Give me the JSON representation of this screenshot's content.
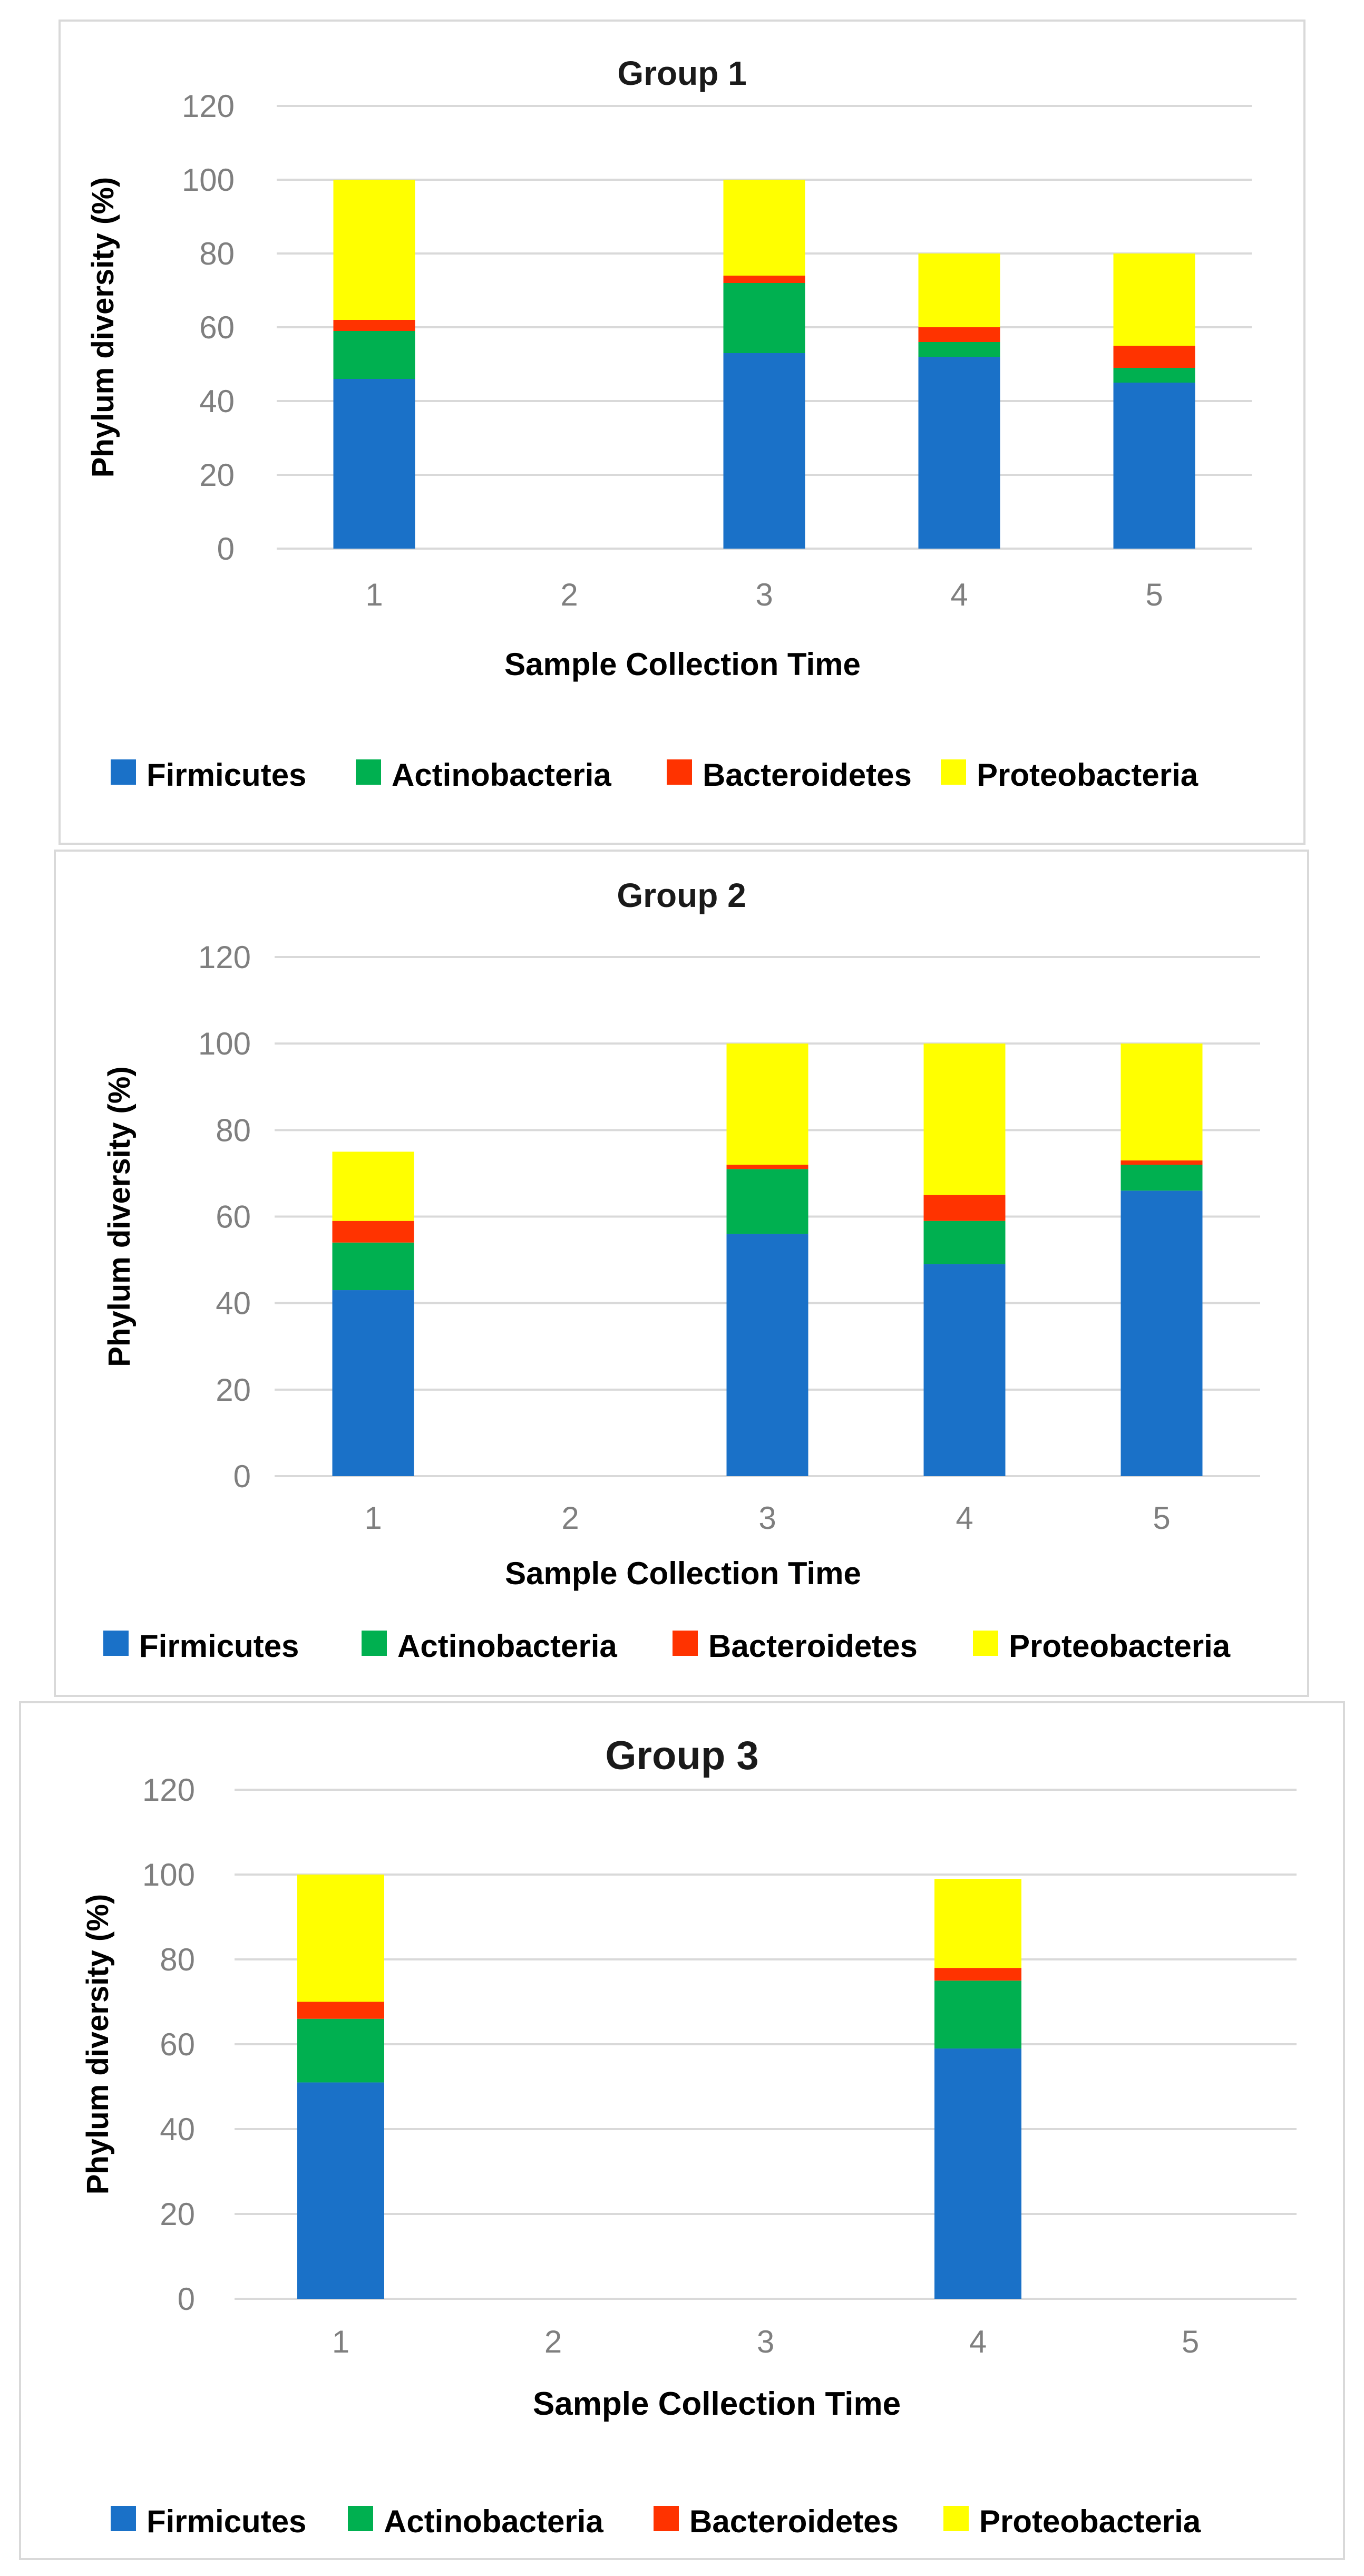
{
  "chart_data": [
    {
      "type": "bar",
      "stacked": true,
      "title": "Group 1",
      "xlabel": "Sample Collection Time",
      "ylabel": "Phylum diversity (%)",
      "categories": [
        "1",
        "2",
        "3",
        "4",
        "5"
      ],
      "ylim": [
        0,
        120
      ],
      "yticks": [
        "0",
        "20",
        "40",
        "60",
        "80",
        "100",
        "120"
      ],
      "grid": true,
      "legend_position": "bottom",
      "series": [
        {
          "name": "Firmicutes",
          "color": "#1a71c8",
          "values": [
            46,
            0,
            53,
            52,
            45
          ]
        },
        {
          "name": "Actinobacteria",
          "color": "#00b050",
          "values": [
            13,
            0,
            19,
            4,
            4
          ]
        },
        {
          "name": "Bacteroidetes",
          "color": "#ff3300",
          "values": [
            3,
            0,
            2,
            4,
            6
          ]
        },
        {
          "name": "Proteobacteria",
          "color": "#ffff00",
          "values": [
            38,
            0,
            26,
            20,
            25
          ]
        }
      ]
    },
    {
      "type": "bar",
      "stacked": true,
      "title": "Group 2",
      "xlabel": "Sample Collection Time",
      "ylabel": "Phylum diversity (%)",
      "categories": [
        "1",
        "2",
        "3",
        "4",
        "5"
      ],
      "ylim": [
        0,
        120
      ],
      "yticks": [
        "0",
        "20",
        "40",
        "60",
        "80",
        "100",
        "120"
      ],
      "grid": true,
      "legend_position": "bottom",
      "series": [
        {
          "name": "Firmicutes",
          "color": "#1a71c8",
          "values": [
            43,
            0,
            56,
            49,
            66
          ]
        },
        {
          "name": "Actinobacteria",
          "color": "#00b050",
          "values": [
            11,
            0,
            15,
            10,
            6
          ]
        },
        {
          "name": "Bacteroidetes",
          "color": "#ff3300",
          "values": [
            5,
            0,
            1,
            6,
            1
          ]
        },
        {
          "name": "Proteobacteria",
          "color": "#ffff00",
          "values": [
            16,
            0,
            28,
            35,
            27
          ]
        }
      ]
    },
    {
      "type": "bar",
      "stacked": true,
      "title": "Group 3",
      "xlabel": "Sample Collection Time",
      "ylabel": "Phylum diversity (%)",
      "categories": [
        "1",
        "2",
        "3",
        "4",
        "5"
      ],
      "ylim": [
        0,
        120
      ],
      "yticks": [
        "0",
        "20",
        "40",
        "60",
        "80",
        "100",
        "120"
      ],
      "grid": true,
      "legend_position": "bottom",
      "series": [
        {
          "name": "Firmicutes",
          "color": "#1a71c8",
          "values": [
            51,
            0,
            0,
            59,
            0
          ]
        },
        {
          "name": "Actinobacteria",
          "color": "#00b050",
          "values": [
            15,
            0,
            0,
            16,
            0
          ]
        },
        {
          "name": "Bacteroidetes",
          "color": "#ff3300",
          "values": [
            4,
            0,
            0,
            3,
            0
          ]
        },
        {
          "name": "Proteobacteria",
          "color": "#ffff00",
          "values": [
            30,
            0,
            0,
            21,
            0
          ]
        }
      ]
    }
  ]
}
